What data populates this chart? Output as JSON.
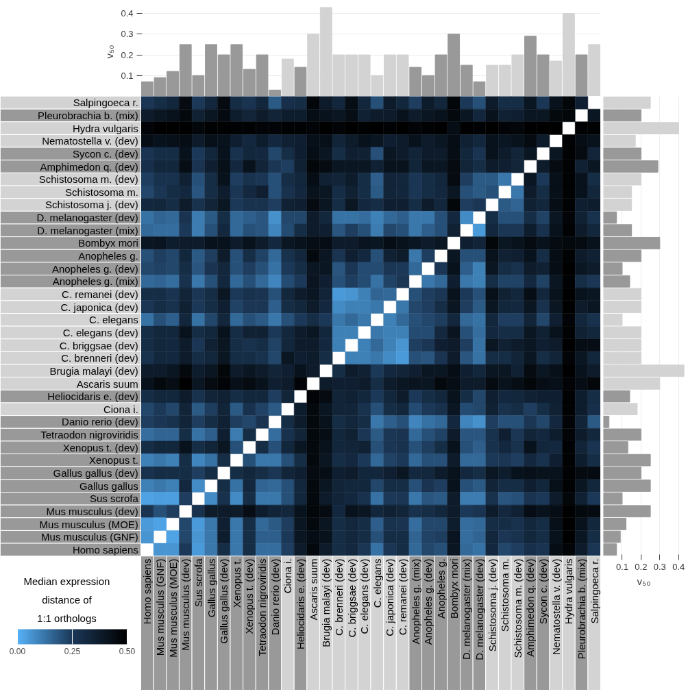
{
  "chart_data": [
    {
      "type": "heatmap",
      "clabel": "Median expression\ndistance of\n1:1 orthologs",
      "clim": [
        0,
        0.5
      ],
      "cticks": [
        {
          "value": 0,
          "label": "0.00"
        },
        {
          "value": 0.25,
          "label": "0.25"
        },
        {
          "value": 0.5,
          "label": "0.50"
        }
      ],
      "categories": [
        "Homo sapiens",
        "Mus musculus (GNF)",
        "Mus musculus (MOE)",
        "Mus musculus (dev)",
        "Sus scrofa",
        "Gallus gallus",
        "Gallus gallus (dev)",
        "Xenopus t.",
        "Xenopus t. (dev)",
        "Tetraodon nigroviridis",
        "Danio rerio (dev)",
        "Ciona i.",
        "Heliocidaris e. (dev)",
        "Ascaris suum",
        "Brugia malayi (dev)",
        "C. brenneri (dev)",
        "C. briggsae (dev)",
        "C. elegans (dev)",
        "C. elegans",
        "C. japonica (dev)",
        "C. remanei (dev)",
        "Anopheles g. (mix)",
        "Anopheles g. (dev)",
        "Anopheles g.",
        "Bombyx mori",
        "D. melanogaster (mix)",
        "D. melanogaster (dev)",
        "Schistosoma j. (dev)",
        "Schistosoma m.",
        "Schistosoma m. (dev)",
        "Amphimedon q. (dev)",
        "Sycon c. (dev)",
        "Nematostella v. (dev)",
        "Hydra vulgaris",
        "Pleurobrachia b. (mix)",
        "Salpingoeca r."
      ],
      "y_categories": [
        "Salpingoeca r.",
        "Pleurobrachia b. (mix)",
        "Hydra vulgaris",
        "Nematostella v. (dev)",
        "Sycon c. (dev)",
        "Amphimedon q. (dev)",
        "Schistosoma m. (dev)",
        "Schistosoma m.",
        "Schistosoma j. (dev)",
        "D. melanogaster (dev)",
        "D. melanogaster (mix)",
        "Bombyx mori",
        "Anopheles g.",
        "Anopheles g. (dev)",
        "Anopheles g. (mix)",
        "C. remanei (dev)",
        "C. japonica (dev)",
        "C. elegans",
        "C. elegans (dev)",
        "C. briggsae (dev)",
        "C. brenneri (dev)",
        "Brugia malayi (dev)",
        "Ascaris suum",
        "Heliocidaris e. (dev)",
        "Ciona i.",
        "Danio rerio (dev)",
        "Tetraodon nigroviridis",
        "Xenopus t. (dev)",
        "Xenopus t.",
        "Gallus gallus (dev)",
        "Gallus gallus",
        "Sus scrofa",
        "Mus musculus (dev)",
        "Mus musculus (MOE)",
        "Mus musculus (GNF)",
        "Homo sapiens"
      ],
      "cells": [
        [
          0.26,
          0.3,
          0.33,
          0.45,
          0.25,
          0.33,
          0.45,
          0.3,
          0.27,
          0.33,
          0.18,
          0.29,
          0.3,
          0.47,
          0.38,
          0.33,
          0.44,
          0.33,
          0.2,
          0.38,
          0.33,
          0.24,
          0.38,
          0.33,
          0.47,
          0.25,
          0.2,
          0.38,
          0.3,
          0.3,
          0.4,
          0.26,
          0.42,
          0.47,
          0.36,
          null
        ],
        [
          0.38,
          0.4,
          0.42,
          0.46,
          0.35,
          0.4,
          0.45,
          0.37,
          0.34,
          0.38,
          0.34,
          0.37,
          0.37,
          0.44,
          0.42,
          0.4,
          0.44,
          0.35,
          0.38,
          0.38,
          0.42,
          0.38,
          0.4,
          0.42,
          0.46,
          0.4,
          0.33,
          0.42,
          0.35,
          0.36,
          0.4,
          0.4,
          0.46,
          0.47,
          null,
          0.4
        ],
        [
          0.48,
          0.5,
          0.5,
          0.5,
          0.47,
          0.49,
          0.49,
          0.49,
          0.49,
          0.48,
          0.48,
          0.49,
          0.49,
          0.48,
          0.5,
          0.48,
          0.5,
          0.49,
          0.5,
          0.49,
          0.5,
          0.48,
          0.49,
          0.5,
          0.44,
          0.5,
          0.49,
          0.5,
          0.48,
          0.47,
          0.5,
          0.5,
          0.5,
          null,
          0.49,
          0.49
        ],
        [
          0.44,
          0.42,
          0.43,
          0.44,
          0.38,
          0.43,
          0.42,
          0.36,
          0.32,
          0.37,
          0.32,
          0.35,
          0.36,
          0.43,
          0.43,
          0.34,
          0.38,
          0.42,
          0.4,
          0.36,
          0.38,
          0.42,
          0.38,
          0.4,
          0.44,
          0.35,
          0.33,
          0.42,
          0.4,
          0.42,
          0.45,
          0.38,
          null,
          0.49,
          0.44,
          0.42
        ],
        [
          0.27,
          0.3,
          0.3,
          0.42,
          0.25,
          0.33,
          0.42,
          0.28,
          0.33,
          0.32,
          0.22,
          0.3,
          0.36,
          0.44,
          0.4,
          0.3,
          0.36,
          0.35,
          0.2,
          0.4,
          0.38,
          0.34,
          0.38,
          0.38,
          0.44,
          0.33,
          0.27,
          0.42,
          0.38,
          0.34,
          0.4,
          null,
          0.4,
          0.49,
          0.45,
          0.34
        ],
        [
          0.29,
          0.33,
          0.33,
          0.44,
          0.27,
          0.36,
          0.43,
          0.32,
          0.42,
          0.34,
          0.26,
          0.24,
          0.35,
          0.47,
          0.45,
          0.4,
          0.4,
          0.4,
          0.35,
          0.42,
          0.42,
          0.34,
          0.4,
          0.4,
          0.45,
          0.34,
          0.3,
          0.38,
          0.36,
          0.34,
          null,
          0.38,
          0.45,
          0.49,
          0.35,
          0.4
        ],
        [
          0.24,
          0.28,
          0.28,
          0.35,
          0.2,
          0.3,
          0.42,
          0.24,
          0.28,
          0.26,
          0.2,
          0.3,
          0.33,
          0.44,
          0.35,
          0.34,
          0.38,
          0.3,
          0.17,
          0.34,
          0.33,
          0.26,
          0.3,
          0.33,
          0.45,
          0.24,
          0.18,
          0.18,
          0.12,
          null,
          0.4,
          0.25,
          0.43,
          0.49,
          0.42,
          0.3
        ],
        [
          0.22,
          0.26,
          0.3,
          0.32,
          0.19,
          0.3,
          0.37,
          0.26,
          0.32,
          0.36,
          0.2,
          0.28,
          0.32,
          0.42,
          0.4,
          0.3,
          0.35,
          0.3,
          0.18,
          0.34,
          0.33,
          0.26,
          0.3,
          0.32,
          0.4,
          0.2,
          0.18,
          0.2,
          null,
          0.12,
          0.38,
          0.3,
          0.43,
          0.49,
          0.42,
          0.33
        ],
        [
          0.32,
          0.33,
          0.3,
          0.38,
          0.28,
          0.34,
          0.4,
          0.25,
          0.28,
          0.28,
          0.24,
          0.35,
          0.36,
          0.45,
          0.4,
          0.3,
          0.4,
          0.32,
          0.3,
          0.36,
          0.36,
          0.3,
          0.38,
          0.33,
          0.47,
          0.24,
          0.26,
          null,
          0.18,
          0.16,
          0.35,
          0.33,
          0.44,
          0.49,
          0.36,
          0.37
        ],
        [
          0.13,
          0.16,
          0.15,
          0.27,
          0.11,
          0.18,
          0.3,
          0.15,
          0.17,
          0.19,
          0.07,
          0.22,
          0.22,
          0.38,
          0.33,
          0.13,
          0.13,
          0.14,
          0.1,
          0.15,
          0.17,
          0.12,
          0.12,
          0.2,
          0.32,
          0.08,
          null,
          0.3,
          0.2,
          0.2,
          0.3,
          0.23,
          0.4,
          0.48,
          0.35,
          0.28
        ],
        [
          0.15,
          0.14,
          0.14,
          0.25,
          0.11,
          0.2,
          0.32,
          0.15,
          0.2,
          0.19,
          0.09,
          0.21,
          0.3,
          0.38,
          0.36,
          0.19,
          0.24,
          0.2,
          0.11,
          0.22,
          0.2,
          0.12,
          0.17,
          0.2,
          0.35,
          null,
          0.05,
          0.32,
          0.26,
          0.26,
          0.37,
          0.28,
          0.42,
          0.49,
          0.38,
          0.33
        ],
        [
          0.4,
          0.41,
          0.37,
          0.38,
          0.38,
          0.42,
          0.42,
          0.38,
          0.42,
          0.38,
          0.32,
          0.4,
          0.42,
          0.44,
          0.44,
          0.38,
          0.38,
          0.41,
          0.4,
          0.44,
          0.42,
          0.4,
          0.38,
          0.4,
          null,
          0.36,
          0.34,
          0.47,
          0.4,
          0.42,
          0.45,
          0.42,
          0.45,
          0.46,
          0.45,
          0.42
        ],
        [
          0.2,
          0.24,
          0.22,
          0.33,
          0.18,
          0.24,
          0.38,
          0.2,
          0.3,
          0.23,
          0.15,
          0.28,
          0.33,
          0.46,
          0.4,
          0.27,
          0.36,
          0.32,
          0.2,
          0.35,
          0.38,
          0.12,
          0.24,
          null,
          0.4,
          0.2,
          0.2,
          0.42,
          0.35,
          0.36,
          0.42,
          0.3,
          0.44,
          0.49,
          0.38,
          0.35
        ],
        [
          0.22,
          0.23,
          0.22,
          0.3,
          0.19,
          0.27,
          0.33,
          0.2,
          0.24,
          0.2,
          0.13,
          0.25,
          0.3,
          0.4,
          0.4,
          0.19,
          0.26,
          0.21,
          0.21,
          0.26,
          0.25,
          0.15,
          null,
          0.26,
          0.42,
          0.17,
          0.1,
          0.4,
          0.3,
          0.28,
          0.38,
          0.35,
          0.44,
          0.5,
          0.4,
          0.38
        ],
        [
          0.15,
          0.16,
          0.14,
          0.28,
          0.12,
          0.2,
          0.32,
          0.15,
          0.2,
          0.15,
          0.09,
          0.21,
          0.25,
          0.41,
          0.36,
          0.2,
          0.24,
          0.21,
          0.13,
          0.23,
          0.26,
          null,
          0.12,
          0.15,
          0.36,
          0.12,
          0.1,
          0.3,
          0.23,
          0.23,
          0.32,
          0.23,
          0.4,
          0.49,
          0.3,
          0.26
        ],
        [
          0.3,
          0.3,
          0.27,
          0.34,
          0.26,
          0.3,
          0.4,
          0.25,
          0.28,
          0.27,
          0.2,
          0.33,
          0.38,
          0.4,
          0.34,
          0.05,
          0.06,
          0.1,
          0.16,
          0.15,
          null,
          0.2,
          0.24,
          0.26,
          0.42,
          0.25,
          0.2,
          0.43,
          0.35,
          0.33,
          0.44,
          0.33,
          0.42,
          0.5,
          0.42,
          0.4
        ],
        [
          0.26,
          0.3,
          0.28,
          0.35,
          0.25,
          0.3,
          0.36,
          0.23,
          0.26,
          0.26,
          0.17,
          0.3,
          0.33,
          0.38,
          0.32,
          0.08,
          0.1,
          0.1,
          0.12,
          null,
          0.12,
          0.22,
          0.24,
          0.3,
          0.4,
          0.24,
          0.18,
          0.4,
          0.33,
          0.32,
          0.4,
          0.28,
          0.4,
          0.5,
          0.38,
          0.4
        ],
        [
          0.13,
          0.2,
          0.17,
          0.33,
          0.13,
          0.22,
          0.33,
          0.15,
          0.2,
          0.18,
          0.12,
          0.2,
          0.25,
          0.3,
          0.25,
          0.12,
          0.15,
          0.12,
          null,
          0.1,
          0.15,
          0.2,
          0.22,
          0.24,
          0.33,
          0.15,
          0.13,
          0.33,
          0.24,
          0.24,
          0.34,
          0.22,
          0.36,
          0.48,
          0.33,
          0.28
        ],
        [
          0.3,
          0.33,
          0.33,
          0.42,
          0.3,
          0.33,
          0.42,
          0.3,
          0.35,
          0.35,
          0.25,
          0.33,
          0.38,
          0.4,
          0.33,
          0.1,
          0.1,
          null,
          0.12,
          0.1,
          0.1,
          0.21,
          0.21,
          0.32,
          0.41,
          0.2,
          0.14,
          0.32,
          0.3,
          0.3,
          0.4,
          0.35,
          0.42,
          0.49,
          0.35,
          0.33
        ],
        [
          0.3,
          0.33,
          0.32,
          0.38,
          0.26,
          0.35,
          0.4,
          0.3,
          0.28,
          0.3,
          0.23,
          0.33,
          0.38,
          0.38,
          0.32,
          0.1,
          null,
          0.1,
          0.15,
          0.1,
          0.06,
          0.24,
          0.26,
          0.36,
          0.38,
          0.24,
          0.13,
          0.4,
          0.35,
          0.38,
          0.4,
          0.36,
          0.38,
          0.5,
          0.44,
          0.44
        ],
        [
          0.28,
          0.33,
          0.32,
          0.38,
          0.3,
          0.33,
          0.4,
          0.3,
          0.3,
          0.28,
          0.22,
          0.4,
          0.36,
          0.38,
          0.3,
          null,
          0.1,
          0.1,
          0.12,
          0.08,
          0.05,
          0.2,
          0.19,
          0.27,
          0.38,
          0.19,
          0.13,
          0.3,
          0.3,
          0.34,
          0.4,
          0.3,
          0.34,
          0.48,
          0.4,
          0.33
        ],
        [
          0.38,
          0.38,
          0.4,
          0.46,
          0.37,
          0.4,
          0.47,
          0.38,
          0.4,
          0.38,
          0.34,
          0.36,
          0.42,
          0.38,
          null,
          0.3,
          0.38,
          0.35,
          0.25,
          0.32,
          0.34,
          0.36,
          0.4,
          0.4,
          0.44,
          0.36,
          0.33,
          0.4,
          0.4,
          0.35,
          0.45,
          0.4,
          0.43,
          0.5,
          0.42,
          0.38
        ],
        [
          0.42,
          0.46,
          0.44,
          0.5,
          0.4,
          0.45,
          0.48,
          0.43,
          0.45,
          0.42,
          0.36,
          0.38,
          0.48,
          null,
          0.38,
          0.36,
          0.36,
          0.38,
          0.3,
          0.38,
          0.4,
          0.41,
          0.4,
          0.46,
          0.44,
          0.38,
          0.38,
          0.45,
          0.42,
          0.44,
          0.47,
          0.44,
          0.43,
          0.48,
          0.44,
          0.47
        ],
        [
          0.3,
          0.33,
          0.33,
          0.38,
          0.28,
          0.34,
          0.35,
          0.3,
          0.33,
          0.33,
          0.24,
          0.34,
          null,
          0.48,
          0.45,
          0.34,
          0.35,
          0.33,
          0.25,
          0.33,
          0.38,
          0.25,
          0.3,
          0.33,
          0.42,
          0.3,
          0.22,
          0.36,
          0.32,
          0.33,
          0.35,
          0.36,
          0.36,
          0.49,
          0.37,
          0.3
        ],
        [
          0.22,
          0.25,
          0.22,
          0.34,
          0.18,
          0.24,
          0.34,
          0.18,
          0.28,
          0.23,
          0.18,
          null,
          0.37,
          0.46,
          0.4,
          0.34,
          0.34,
          0.28,
          0.2,
          0.3,
          0.33,
          0.21,
          0.25,
          0.28,
          0.4,
          0.21,
          0.22,
          0.35,
          0.28,
          0.3,
          0.24,
          0.3,
          0.35,
          0.49,
          0.37,
          0.29
        ],
        [
          0.24,
          0.26,
          0.28,
          0.34,
          0.24,
          0.3,
          0.35,
          0.24,
          0.22,
          0.27,
          null,
          0.3,
          0.38,
          0.46,
          0.42,
          0.3,
          0.33,
          0.3,
          0.12,
          0.17,
          0.2,
          0.09,
          0.13,
          0.15,
          0.32,
          0.09,
          0.07,
          0.24,
          0.2,
          0.2,
          0.26,
          0.22,
          0.32,
          0.48,
          0.34,
          0.18
        ],
        [
          0.14,
          0.16,
          0.16,
          0.3,
          0.13,
          0.17,
          0.36,
          0.11,
          0.3,
          null,
          0.14,
          0.28,
          0.34,
          0.46,
          0.44,
          0.33,
          0.35,
          0.26,
          0.18,
          0.26,
          0.27,
          0.15,
          0.2,
          0.23,
          0.38,
          0.19,
          0.19,
          0.28,
          0.36,
          0.26,
          0.34,
          0.32,
          0.37,
          0.48,
          0.38,
          0.33
        ],
        [
          0.3,
          0.33,
          0.33,
          0.42,
          0.3,
          0.34,
          0.4,
          0.2,
          null,
          0.3,
          0.2,
          0.33,
          0.4,
          0.46,
          0.42,
          0.33,
          0.34,
          0.35,
          0.2,
          0.26,
          0.28,
          0.2,
          0.24,
          0.3,
          0.42,
          0.2,
          0.17,
          0.28,
          0.32,
          0.28,
          0.42,
          0.33,
          0.32,
          0.49,
          0.34,
          0.27
        ],
        [
          0.1,
          0.12,
          0.1,
          0.3,
          0.09,
          0.13,
          0.3,
          null,
          0.2,
          0.12,
          0.12,
          0.2,
          0.3,
          0.46,
          0.4,
          0.3,
          0.32,
          0.25,
          0.15,
          0.23,
          0.25,
          0.15,
          0.2,
          0.2,
          0.38,
          0.15,
          0.15,
          0.25,
          0.26,
          0.24,
          0.32,
          0.28,
          0.36,
          0.49,
          0.37,
          0.3
        ],
        [
          0.28,
          0.3,
          0.3,
          0.3,
          0.24,
          0.3,
          null,
          0.3,
          0.33,
          0.3,
          0.26,
          0.34,
          0.36,
          0.45,
          0.44,
          0.36,
          0.38,
          0.33,
          0.33,
          0.36,
          0.4,
          0.32,
          0.33,
          0.38,
          0.42,
          0.32,
          0.3,
          0.4,
          0.37,
          0.42,
          0.43,
          0.42,
          0.42,
          0.49,
          0.45,
          0.45
        ],
        [
          0.1,
          0.12,
          0.1,
          0.32,
          0.08,
          null,
          0.3,
          0.13,
          0.32,
          0.16,
          0.15,
          0.2,
          0.33,
          0.46,
          0.4,
          0.34,
          0.33,
          0.33,
          0.22,
          0.3,
          0.3,
          0.2,
          0.27,
          0.24,
          0.42,
          0.2,
          0.18,
          0.34,
          0.3,
          0.3,
          0.36,
          0.33,
          0.43,
          0.49,
          0.4,
          0.33
        ],
        [
          0.03,
          0.04,
          0.04,
          0.24,
          null,
          0.08,
          0.28,
          0.08,
          0.3,
          0.12,
          0.12,
          0.2,
          0.33,
          0.46,
          0.38,
          0.34,
          0.32,
          0.28,
          0.13,
          0.25,
          0.26,
          0.12,
          0.19,
          0.18,
          0.38,
          0.11,
          0.11,
          0.28,
          0.19,
          0.2,
          0.27,
          0.25,
          0.38,
          0.47,
          0.35,
          0.25
        ],
        [
          0.27,
          0.2,
          0.24,
          null,
          0.28,
          0.38,
          0.38,
          0.38,
          0.44,
          0.37,
          0.34,
          0.33,
          0.42,
          0.47,
          0.45,
          0.32,
          0.42,
          0.4,
          0.33,
          0.35,
          0.34,
          0.28,
          0.3,
          0.33,
          0.38,
          0.25,
          0.27,
          0.38,
          0.32,
          0.35,
          0.44,
          0.42,
          0.44,
          0.5,
          0.46,
          0.45
        ],
        [
          0.05,
          0.03,
          null,
          0.22,
          0.05,
          0.12,
          0.36,
          0.12,
          0.3,
          0.15,
          0.18,
          0.24,
          0.4,
          0.46,
          0.4,
          0.3,
          0.33,
          0.3,
          0.17,
          0.28,
          0.27,
          0.14,
          0.22,
          0.22,
          0.37,
          0.14,
          0.15,
          0.3,
          0.3,
          0.28,
          0.33,
          0.3,
          0.43,
          0.5,
          0.42,
          0.33
        ],
        [
          0.06,
          null,
          0.03,
          0.22,
          0.06,
          0.12,
          0.37,
          0.12,
          0.3,
          0.17,
          0.17,
          0.25,
          0.4,
          0.44,
          0.42,
          0.3,
          0.33,
          0.3,
          0.2,
          0.3,
          0.3,
          0.16,
          0.23,
          0.24,
          0.41,
          0.14,
          0.16,
          0.33,
          0.26,
          0.28,
          0.33,
          0.3,
          0.42,
          0.5,
          0.4,
          0.3
        ],
        [
          null,
          0.06,
          0.06,
          0.25,
          0.05,
          0.12,
          0.3,
          0.12,
          0.3,
          0.14,
          0.14,
          0.24,
          0.38,
          0.46,
          0.38,
          0.3,
          0.32,
          0.26,
          0.13,
          0.26,
          0.3,
          0.15,
          0.22,
          0.2,
          0.4,
          0.15,
          0.13,
          0.32,
          0.22,
          0.24,
          0.29,
          0.27,
          0.44,
          0.48,
          0.38,
          0.26
        ]
      ]
    },
    {
      "type": "bar",
      "ylabel": "v₅₀",
      "ylim": [
        0,
        0.43
      ],
      "yticks": [
        0.1,
        0.2,
        0.3,
        0.4
      ],
      "grid": "y",
      "tick_labels": "y",
      "categories": [
        null,
        null,
        null,
        null,
        null,
        null,
        null,
        null,
        null,
        null,
        null,
        null,
        null,
        null,
        null,
        null,
        null,
        null,
        null,
        null,
        null,
        null,
        null,
        null,
        null,
        null,
        null,
        null,
        null,
        null,
        null,
        null,
        null,
        null,
        null,
        null
      ],
      "values": [
        0.07,
        0.09,
        0.12,
        0.25,
        0.1,
        0.25,
        0.2,
        0.25,
        0.13,
        0.2,
        0.03,
        0.18,
        0.14,
        0.3,
        0.43,
        0.2,
        0.2,
        0.2,
        0.1,
        0.2,
        0.2,
        0.14,
        0.1,
        0.2,
        0.3,
        0.15,
        0.07,
        0.15,
        0.15,
        0.2,
        0.29,
        0.2,
        0.17,
        0.4,
        0.2,
        0.25
      ],
      "colors": [
        "#999999",
        "#999999",
        "#999999",
        "#999999",
        "#999999",
        "#999999",
        "#999999",
        "#999999",
        "#999999",
        "#999999",
        "#999999",
        "#d3d3d3",
        "#999999",
        "#d3d3d3",
        "#d3d3d3",
        "#d3d3d3",
        "#d3d3d3",
        "#d3d3d3",
        "#d3d3d3",
        "#d3d3d3",
        "#d3d3d3",
        "#999999",
        "#999999",
        "#999999",
        "#999999",
        "#999999",
        "#999999",
        "#d3d3d3",
        "#d3d3d3",
        "#d3d3d3",
        "#999999",
        "#999999",
        "#d3d3d3",
        "#d3d3d3",
        "#999999",
        "#d3d3d3"
      ]
    },
    {
      "type": "bar",
      "orientation": "horizontal",
      "xlabel": "v₅₀",
      "xlim": [
        0,
        0.43
      ],
      "xticks": [
        0.1,
        0.2,
        0.3,
        0.4
      ],
      "grid": "x",
      "tick_labels": "x",
      "categories": [
        null,
        null,
        null,
        null,
        null,
        null,
        null,
        null,
        null,
        null,
        null,
        null,
        null,
        null,
        null,
        null,
        null,
        null,
        null,
        null,
        null,
        null,
        null,
        null,
        null,
        null,
        null,
        null,
        null,
        null,
        null,
        null,
        null,
        null,
        null,
        null
      ],
      "values": [
        0.25,
        0.2,
        0.4,
        0.17,
        0.2,
        0.29,
        0.2,
        0.15,
        0.15,
        0.07,
        0.15,
        0.3,
        0.2,
        0.1,
        0.14,
        0.2,
        0.2,
        0.1,
        0.2,
        0.2,
        0.2,
        0.43,
        0.3,
        0.14,
        0.18,
        0.03,
        0.2,
        0.13,
        0.25,
        0.2,
        0.25,
        0.1,
        0.25,
        0.12,
        0.09,
        0.07
      ],
      "colors": [
        "#d3d3d3",
        "#999999",
        "#d3d3d3",
        "#d3d3d3",
        "#999999",
        "#999999",
        "#d3d3d3",
        "#d3d3d3",
        "#d3d3d3",
        "#999999",
        "#999999",
        "#999999",
        "#999999",
        "#999999",
        "#999999",
        "#d3d3d3",
        "#d3d3d3",
        "#d3d3d3",
        "#d3d3d3",
        "#d3d3d3",
        "#d3d3d3",
        "#d3d3d3",
        "#d3d3d3",
        "#999999",
        "#d3d3d3",
        "#999999",
        "#999999",
        "#999999",
        "#999999",
        "#999999",
        "#999999",
        "#999999",
        "#999999",
        "#999999",
        "#999999",
        "#999999"
      ]
    }
  ]
}
